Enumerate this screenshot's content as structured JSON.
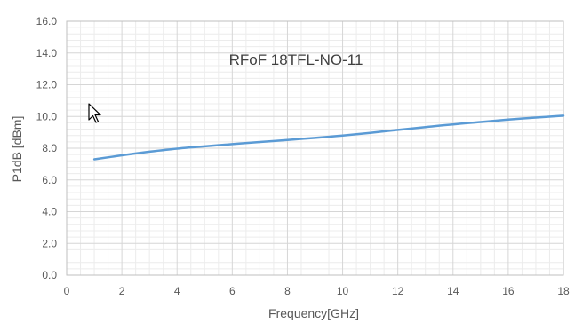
{
  "chart_data": {
    "type": "line",
    "title": "RFoF 18TFL-NO-11",
    "xlabel": "Frequency[GHz]",
    "ylabel": "P1dB [dBm]",
    "xlim": [
      0,
      18
    ],
    "ylim": [
      0,
      16
    ],
    "x_ticks": [
      0,
      2,
      4,
      6,
      8,
      10,
      12,
      14,
      16,
      18
    ],
    "y_ticks": [
      "0.0",
      "2.0",
      "4.0",
      "6.0",
      "8.0",
      "10.0",
      "12.0",
      "14.0",
      "16.0"
    ],
    "grid": {
      "major": true,
      "minor": true
    },
    "legend": "none",
    "series": [
      {
        "color": "#5b9bd5",
        "x": [
          1,
          2,
          3,
          4,
          5,
          6,
          7,
          8,
          9,
          10,
          11,
          12,
          13,
          14,
          15,
          16,
          17,
          18
        ],
        "y": [
          7.3,
          7.55,
          7.78,
          7.97,
          8.12,
          8.26,
          8.39,
          8.52,
          8.65,
          8.8,
          8.97,
          9.15,
          9.33,
          9.5,
          9.65,
          9.8,
          9.93,
          10.05
        ]
      }
    ]
  },
  "cursor": {
    "icon": "mouse-pointer-icon"
  }
}
